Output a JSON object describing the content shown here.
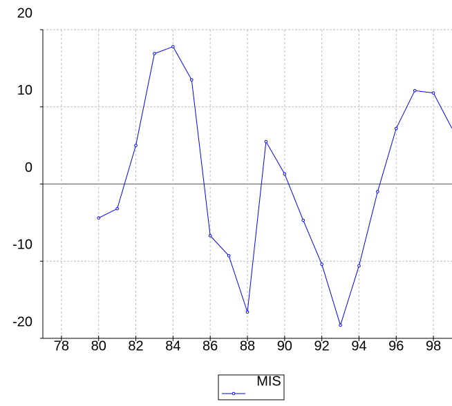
{
  "chart_data": {
    "type": "line",
    "x": [
      80,
      81,
      82,
      83,
      84,
      85,
      86,
      87,
      88,
      89,
      90,
      91,
      92,
      93,
      94,
      95,
      96,
      97,
      98,
      99
    ],
    "series": [
      {
        "name": "MIS",
        "color": "#0000ff",
        "values": [
          -4.4,
          -3.2,
          5.0,
          16.9,
          17.8,
          13.5,
          -6.7,
          -9.3,
          -16.6,
          5.5,
          1.3,
          -4.7,
          -10.4,
          -18.3,
          -10.6,
          -1.0,
          7.2,
          12.1,
          11.8,
          7.2
        ]
      }
    ],
    "xlim": [
      77,
      99
    ],
    "xticks": [
      78,
      80,
      82,
      84,
      86,
      88,
      90,
      92,
      94,
      96,
      98
    ],
    "ylim": [
      -20,
      20
    ],
    "yticks": [
      -20,
      -10,
      0,
      10,
      20
    ],
    "grid": true
  }
}
